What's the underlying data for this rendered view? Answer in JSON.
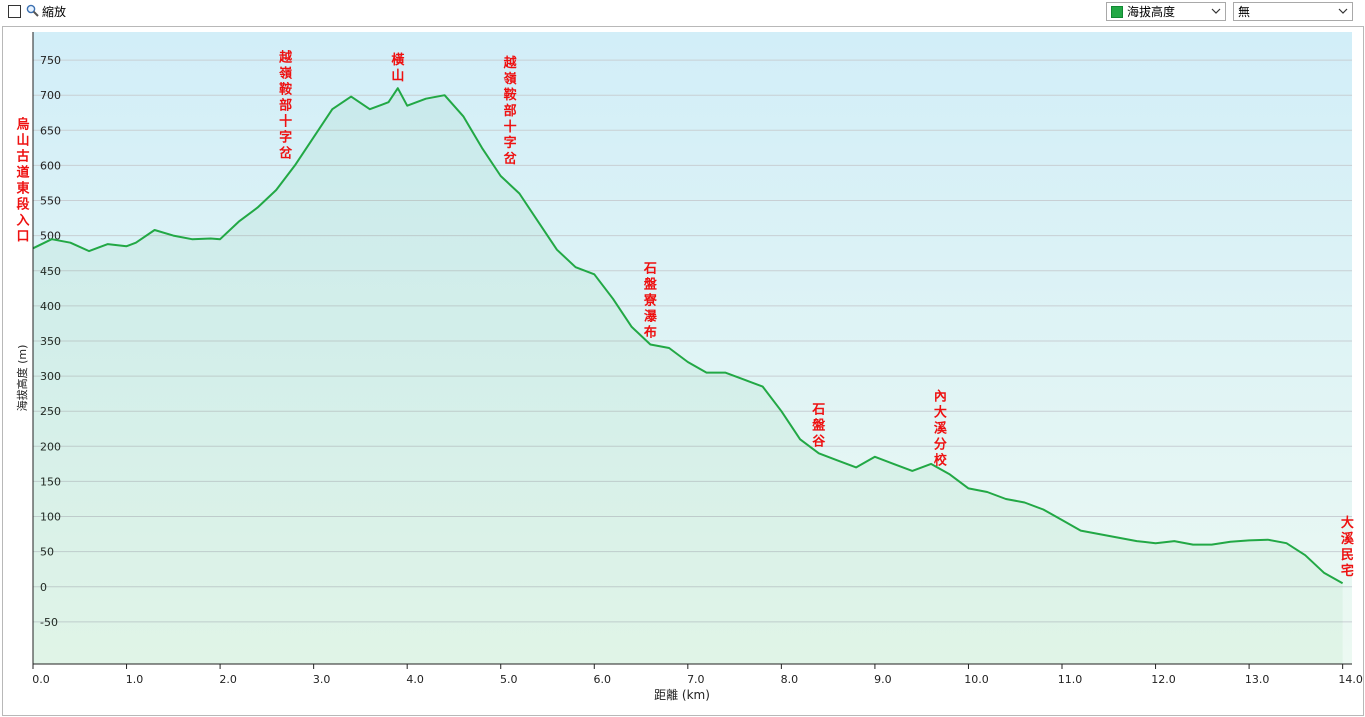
{
  "toolbar": {
    "zoom_label": "縮放",
    "series_select": "海拔高度",
    "fill_select": "無"
  },
  "colors": {
    "line": "#22a845",
    "annotation": "#ee1111",
    "bg_top": "#d2eef8",
    "bg_bottom": "#ecf9f2"
  },
  "chart_data": {
    "type": "area",
    "xlabel": "距離 (km)",
    "ylabel": "海拔高度 (m)",
    "xlim": [
      0,
      14.1
    ],
    "ylim": [
      -110,
      790
    ],
    "xticks": [
      "0.0",
      "1.0",
      "2.0",
      "3.0",
      "4.0",
      "5.0",
      "6.0",
      "7.0",
      "8.0",
      "9.0",
      "10.0",
      "11.0",
      "12.0",
      "13.0",
      "14.0"
    ],
    "yticks": [
      "750",
      "700",
      "650",
      "600",
      "550",
      "500",
      "450",
      "400",
      "350",
      "300",
      "250",
      "200",
      "150",
      "100",
      "50",
      "0",
      "-50"
    ],
    "grid": true,
    "series": [
      {
        "x": [
          0,
          0.2,
          0.4,
          0.6,
          0.8,
          1.0,
          1.1,
          1.3,
          1.5,
          1.7,
          1.9,
          2.0,
          2.2,
          2.4,
          2.6,
          2.8,
          3.0,
          3.2,
          3.4,
          3.6,
          3.8,
          3.9,
          4.0,
          4.2,
          4.4,
          4.6,
          4.8,
          5.0,
          5.2,
          5.4,
          5.6,
          5.8,
          6.0,
          6.2,
          6.4,
          6.6,
          6.8,
          7.0,
          7.2,
          7.4,
          7.6,
          7.8,
          8.0,
          8.2,
          8.4,
          8.6,
          8.8,
          9.0,
          9.2,
          9.4,
          9.6,
          9.8,
          10.0,
          10.2,
          10.4,
          10.6,
          10.8,
          11.0,
          11.2,
          11.4,
          11.6,
          11.8,
          12.0,
          12.2,
          12.4,
          12.6,
          12.8,
          13.0,
          13.2,
          13.4,
          13.6,
          13.8,
          14.0
        ],
        "y": [
          482,
          495,
          490,
          478,
          488,
          485,
          490,
          508,
          500,
          495,
          496,
          495,
          520,
          540,
          565,
          600,
          640,
          680,
          698,
          680,
          690,
          710,
          685,
          695,
          700,
          670,
          625,
          585,
          560,
          520,
          480,
          455,
          445,
          410,
          370,
          345,
          340,
          320,
          305,
          305,
          295,
          285,
          250,
          210,
          190,
          180,
          170,
          185,
          175,
          165,
          175,
          160,
          140,
          135,
          125,
          120,
          110,
          95,
          80,
          75,
          70,
          65,
          62,
          65,
          60,
          60,
          64,
          66,
          67,
          62,
          45,
          20,
          5
        ]
      }
    ],
    "annotations": [
      {
        "label": "烏山古道東段入口",
        "x": 0.0,
        "y": 482
      },
      {
        "label": "越嶺鞍部十字岔",
        "x": 2.7,
        "y": 600
      },
      {
        "label": "橫山",
        "x": 3.9,
        "y": 710
      },
      {
        "label": "越嶺鞍部十字岔",
        "x": 5.1,
        "y": 592
      },
      {
        "label": "石盤寮瀑布",
        "x": 6.6,
        "y": 345
      },
      {
        "label": "石盤谷",
        "x": 8.4,
        "y": 190
      },
      {
        "label": "內大溪分校",
        "x": 9.7,
        "y": 163
      },
      {
        "label": "大溪民宅",
        "x": 14.05,
        "y": 5
      }
    ]
  }
}
